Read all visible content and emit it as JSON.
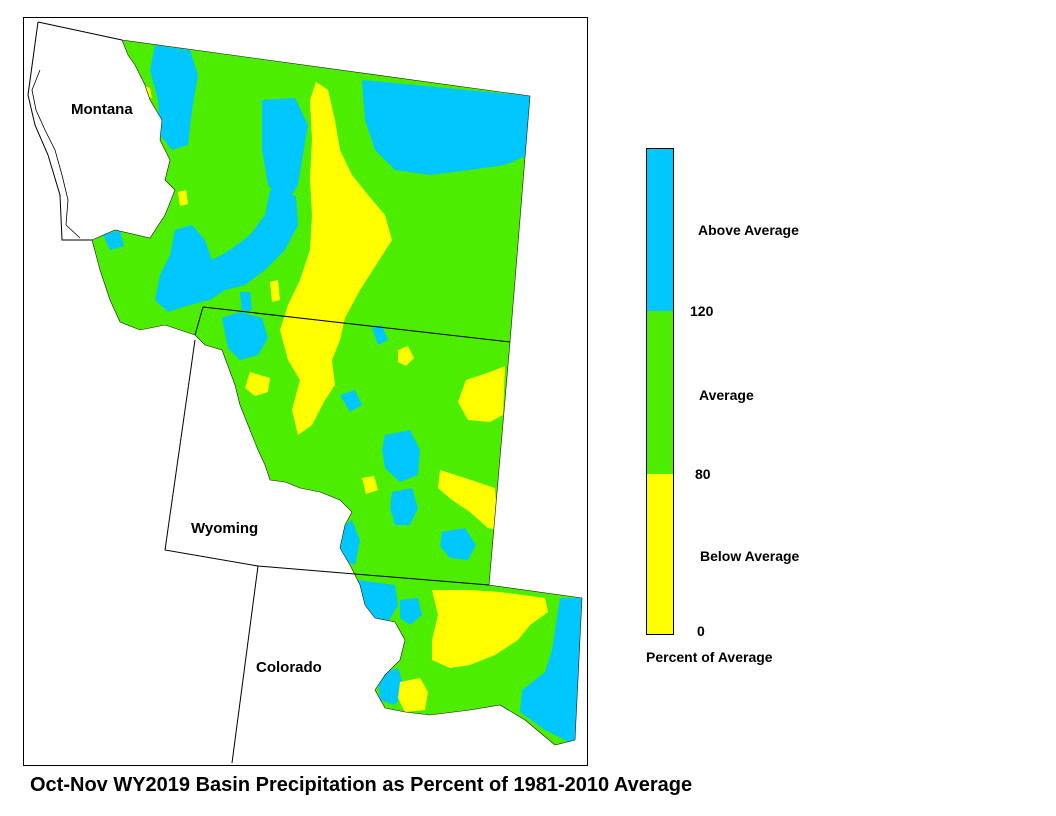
{
  "map": {
    "colors": {
      "above": "#00c8ff",
      "average": "#4ded00",
      "below": "#ffff00",
      "outside": "#ffffff",
      "border": "#000000"
    },
    "state_labels": {
      "montana": "Montana",
      "wyoming": "Wyoming",
      "colorado": "Colorado"
    }
  },
  "legend": {
    "above_label": "Above Average",
    "average_label": "Average",
    "below_label": "Below Average",
    "tick_120": "120",
    "tick_80": "80",
    "tick_0": "0",
    "title": "Percent of Average"
  },
  "caption": "Oct-Nov WY2019 Basin Precipitation as Percent of 1981-2010 Average"
}
